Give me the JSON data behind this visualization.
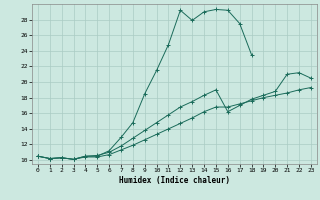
{
  "xlabel": "Humidex (Indice chaleur)",
  "background_color": "#cce8e0",
  "grid_color": "#aaccc4",
  "line_color": "#1a6b5a",
  "xlim": [
    -0.5,
    23.5
  ],
  "ylim": [
    9.5,
    30.0
  ],
  "xticks": [
    0,
    1,
    2,
    3,
    4,
    5,
    6,
    7,
    8,
    9,
    10,
    11,
    12,
    13,
    14,
    15,
    16,
    17,
    18,
    19,
    20,
    21,
    22,
    23
  ],
  "yticks": [
    10,
    12,
    14,
    16,
    18,
    20,
    22,
    24,
    26,
    28
  ],
  "line1_x": [
    0,
    1,
    2,
    3,
    4,
    5,
    6,
    7,
    8,
    9,
    10,
    11,
    12,
    13,
    14,
    15,
    16,
    17,
    18
  ],
  "line1_y": [
    10.5,
    10.2,
    10.3,
    10.1,
    10.5,
    10.5,
    11.2,
    12.9,
    14.8,
    18.5,
    21.5,
    24.8,
    29.2,
    27.9,
    29.0,
    29.3,
    29.2,
    27.5,
    23.5
  ],
  "line2_x": [
    0,
    1,
    2,
    3,
    4,
    5,
    6,
    7,
    8,
    9,
    10,
    11,
    12,
    13,
    14,
    15,
    16,
    17,
    18,
    19,
    20,
    21,
    22,
    23
  ],
  "line2_y": [
    10.5,
    10.2,
    10.3,
    10.1,
    10.5,
    10.6,
    11.0,
    11.8,
    12.8,
    13.8,
    14.8,
    15.8,
    16.8,
    17.5,
    18.3,
    19.0,
    16.2,
    17.0,
    17.8,
    18.3,
    18.8,
    21.0,
    21.2,
    20.5
  ],
  "line3_x": [
    0,
    1,
    2,
    3,
    4,
    5,
    6,
    7,
    8,
    9,
    10,
    11,
    12,
    13,
    14,
    15,
    16,
    17,
    18,
    19,
    20,
    21,
    22,
    23
  ],
  "line3_y": [
    10.5,
    10.2,
    10.3,
    10.1,
    10.4,
    10.4,
    10.7,
    11.3,
    11.9,
    12.6,
    13.3,
    14.0,
    14.7,
    15.4,
    16.2,
    16.8,
    16.8,
    17.2,
    17.6,
    18.0,
    18.3,
    18.6,
    19.0,
    19.3
  ]
}
